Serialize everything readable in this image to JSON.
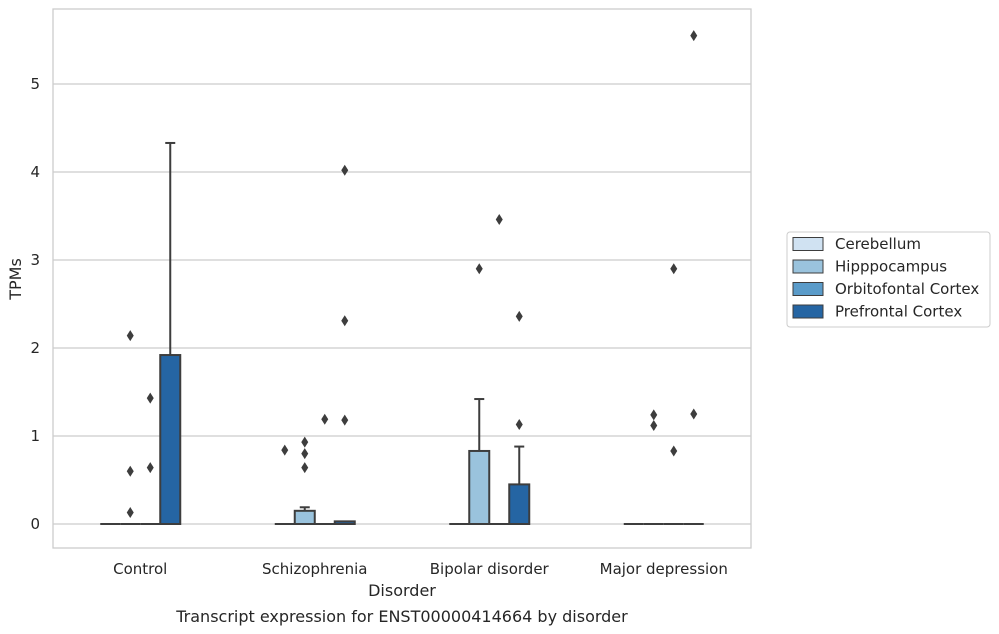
{
  "chart_data": {
    "type": "box",
    "caption": "Transcript expression for ENST00000414664 by disorder",
    "xlabel": "Disorder",
    "ylabel": "TPMs",
    "ylim": [
      -0.27,
      5.85
    ],
    "yticks": [
      0,
      1,
      2,
      3,
      4,
      5
    ],
    "grid": true,
    "legend_position": "right",
    "categories": [
      "Control",
      "Schizophrenia",
      "Bipolar disorder",
      "Major depression"
    ],
    "series": [
      {
        "name": "Cerebellum",
        "color": "#d0e2f2",
        "boxes": [
          {
            "q1": 0,
            "median": 0,
            "q3": 0,
            "whisker_low": 0,
            "whisker_high": 0,
            "outliers": []
          },
          {
            "q1": 0,
            "median": 0,
            "q3": 0,
            "whisker_low": 0,
            "whisker_high": 0,
            "outliers": [
              0.84
            ]
          },
          {
            "q1": 0,
            "median": 0,
            "q3": 0,
            "whisker_low": 0,
            "whisker_high": 0,
            "outliers": []
          },
          {
            "q1": 0,
            "median": 0,
            "q3": 0,
            "whisker_low": 0,
            "whisker_high": 0,
            "outliers": []
          }
        ]
      },
      {
        "name": "Hipppocampus",
        "color": "#9ac3dd",
        "boxes": [
          {
            "q1": 0,
            "median": 0,
            "q3": 0,
            "whisker_low": 0,
            "whisker_high": 0,
            "outliers": [
              0.13,
              0.6,
              2.14
            ]
          },
          {
            "q1": 0,
            "median": 0,
            "q3": 0.15,
            "whisker_low": 0,
            "whisker_high": 0.19,
            "outliers": [
              0.64,
              0.8,
              0.93
            ]
          },
          {
            "q1": 0,
            "median": 0,
            "q3": 0.83,
            "whisker_low": 0,
            "whisker_high": 1.42,
            "outliers": [
              2.9
            ]
          },
          {
            "q1": 0,
            "median": 0,
            "q3": 0,
            "whisker_low": 0,
            "whisker_high": 0,
            "outliers": [
              1.12,
              1.24
            ]
          }
        ]
      },
      {
        "name": "Orbitofontal Cortex",
        "color": "#5a9bc9",
        "boxes": [
          {
            "q1": 0,
            "median": 0,
            "q3": 0,
            "whisker_low": 0,
            "whisker_high": 0,
            "outliers": [
              0.64,
              1.43
            ]
          },
          {
            "q1": 0,
            "median": 0,
            "q3": 0,
            "whisker_low": 0,
            "whisker_high": 0,
            "outliers": [
              1.19
            ]
          },
          {
            "q1": 0,
            "median": 0,
            "q3": 0,
            "whisker_low": 0,
            "whisker_high": 0,
            "outliers": [
              3.46
            ]
          },
          {
            "q1": 0,
            "median": 0,
            "q3": 0,
            "whisker_low": 0,
            "whisker_high": 0,
            "outliers": [
              0.83,
              2.9
            ]
          }
        ]
      },
      {
        "name": "Prefrontal Cortex",
        "color": "#2565a3",
        "boxes": [
          {
            "q1": 0,
            "median": 0,
            "q3": 1.92,
            "whisker_low": 0,
            "whisker_high": 4.33,
            "outliers": []
          },
          {
            "q1": 0,
            "median": 0,
            "q3": 0.03,
            "whisker_low": 0,
            "whisker_high": 0.03,
            "outliers": [
              1.18,
              2.31,
              4.02
            ]
          },
          {
            "q1": 0,
            "median": 0,
            "q3": 0.45,
            "whisker_low": 0,
            "whisker_high": 0.88,
            "outliers": [
              1.13,
              2.36
            ]
          },
          {
            "q1": 0,
            "median": 0,
            "q3": 0,
            "whisker_low": 0,
            "whisker_high": 0,
            "outliers": [
              1.25,
              5.55
            ]
          }
        ]
      }
    ]
  }
}
